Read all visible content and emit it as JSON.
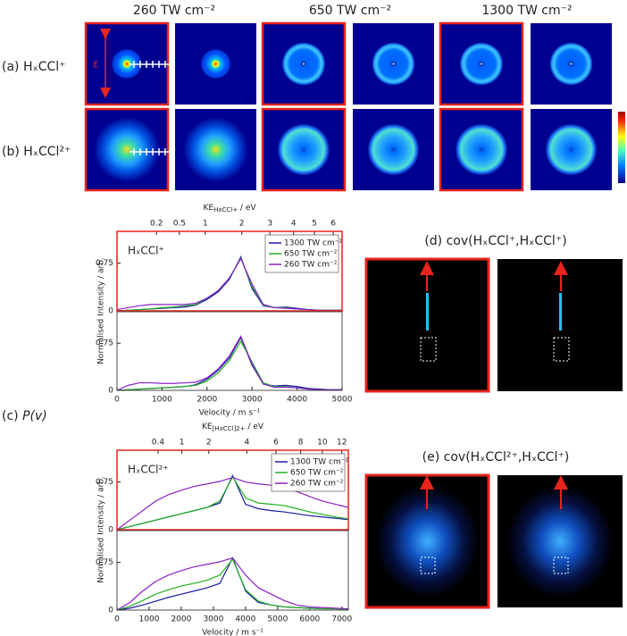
{
  "column_headers": [
    "260 TW cm⁻²",
    "650 TW cm⁻²",
    "1300 TW cm⁻²"
  ],
  "row_labels": [
    "(a) HₓCCl⁺",
    "(b) HₓCCl²⁺"
  ],
  "epsilon_label": "ε",
  "panel_c": {
    "letter": "(c)",
    "label": "P(v)"
  },
  "panel_d_title": "(d) cov(HₓCCl⁺,HₓCCl⁺)",
  "panel_e_title": "(e) cov(HₓCCl²⁺,HₓCCl⁺)",
  "chart_data": [
    {
      "type": "line",
      "title": "HₓCCl⁺",
      "x2label": {
        "text": "KE",
        "sub": "HxCCl+",
        "unit": " / eV"
      },
      "x2lim": [
        0,
        6.5
      ],
      "x2ticks": [
        0.2,
        0.5,
        1,
        2,
        3,
        4,
        5,
        6
      ],
      "x2scale": "sqrt",
      "ylabel": "Normalised Intensity / arb.",
      "xlim": [
        0,
        5000
      ],
      "ylim": [
        0,
        1.25
      ],
      "yticks": [
        0,
        0.75
      ],
      "frame_color": "#e8241c",
      "legend": "upper right",
      "x": [
        0,
        250,
        500,
        750,
        1000,
        1250,
        1500,
        1750,
        2000,
        2250,
        2500,
        2750,
        3000,
        3250,
        3500,
        3750,
        4000,
        4250,
        4500,
        4750,
        5000
      ],
      "series": [
        {
          "name": "1300 TW cm⁻²",
          "color": "#1a1aa6",
          "values": [
            0,
            0.01,
            0.02,
            0.03,
            0.04,
            0.05,
            0.06,
            0.09,
            0.18,
            0.3,
            0.5,
            0.85,
            0.35,
            0.08,
            0.05,
            0.06,
            0.04,
            0.02,
            0.01,
            0.01,
            0.01
          ]
        },
        {
          "name": "650 TW cm⁻²",
          "color": "#22b022",
          "values": [
            0,
            0.01,
            0.02,
            0.03,
            0.05,
            0.06,
            0.08,
            0.1,
            0.2,
            0.32,
            0.52,
            0.83,
            0.38,
            0.09,
            0.05,
            0.05,
            0.03,
            0.02,
            0.01,
            0.01,
            0.01
          ]
        },
        {
          "name": "260 TW cm⁻²",
          "color": "#8a20c8",
          "values": [
            0.02,
            0.05,
            0.08,
            0.1,
            0.1,
            0.1,
            0.1,
            0.12,
            0.2,
            0.32,
            0.52,
            0.82,
            0.42,
            0.1,
            0.05,
            0.04,
            0.03,
            0.02,
            0.01,
            0.01,
            0.01
          ]
        }
      ]
    },
    {
      "type": "line",
      "xlabel": "Velocity / m s⁻¹",
      "xlim": [
        0,
        5000
      ],
      "xticks": [
        0,
        1000,
        2000,
        3000,
        4000,
        5000
      ],
      "ylim": [
        0,
        1.25
      ],
      "yticks": [
        0,
        0.75
      ],
      "frame_color": "#222222",
      "x": [
        0,
        250,
        500,
        750,
        1000,
        1250,
        1500,
        1750,
        2000,
        2250,
        2500,
        2750,
        3000,
        3250,
        3500,
        3750,
        4000,
        4250,
        4500,
        4750,
        5000
      ],
      "series": [
        {
          "color": "#1a1aa6",
          "values": [
            0,
            0.01,
            0.02,
            0.03,
            0.04,
            0.05,
            0.06,
            0.09,
            0.18,
            0.32,
            0.52,
            0.84,
            0.4,
            0.1,
            0.07,
            0.08,
            0.06,
            0.03,
            0.02,
            0.01,
            0.01
          ]
        },
        {
          "color": "#22b022",
          "values": [
            0,
            0.01,
            0.02,
            0.03,
            0.04,
            0.05,
            0.06,
            0.08,
            0.15,
            0.28,
            0.48,
            0.78,
            0.45,
            0.12,
            0.06,
            0.06,
            0.04,
            0.02,
            0.01,
            0.01,
            0.01
          ]
        },
        {
          "color": "#8a20c8",
          "values": [
            0,
            0.08,
            0.12,
            0.12,
            0.11,
            0.11,
            0.12,
            0.13,
            0.2,
            0.34,
            0.55,
            0.86,
            0.42,
            0.1,
            0.05,
            0.05,
            0.04,
            0.02,
            0.01,
            0.01,
            0.01
          ]
        }
      ]
    },
    {
      "type": "line",
      "title": "HₓCCl²⁺",
      "x2label": {
        "text": "KE",
        "sub": "[HxCCl]2+",
        "unit": " / eV"
      },
      "x2lim": [
        0,
        12.7
      ],
      "x2ticks": [
        0.4,
        1,
        2,
        4,
        6,
        8,
        10,
        12
      ],
      "x2scale": "sqrt",
      "ylabel": "Normalised Intensity / arb.",
      "xlim": [
        0,
        7200
      ],
      "ylim": [
        0,
        1.25
      ],
      "yticks": [
        0,
        0.75
      ],
      "frame_color": "#e8241c",
      "legend": "upper right",
      "x": [
        0,
        400,
        800,
        1200,
        1600,
        2000,
        2400,
        2800,
        3200,
        3600,
        4000,
        4400,
        4800,
        5200,
        5600,
        6000,
        6400,
        6800,
        7200
      ],
      "series": [
        {
          "name": "1300 TW cm⁻²",
          "color": "#1a1aa6",
          "values": [
            0,
            0.05,
            0.1,
            0.15,
            0.2,
            0.25,
            0.3,
            0.35,
            0.42,
            0.85,
            0.4,
            0.33,
            0.3,
            0.28,
            0.25,
            0.22,
            0.2,
            0.18,
            0.16
          ]
        },
        {
          "name": "650 TW cm⁻²",
          "color": "#22b022",
          "values": [
            0,
            0.05,
            0.1,
            0.15,
            0.2,
            0.25,
            0.3,
            0.35,
            0.45,
            0.83,
            0.5,
            0.42,
            0.4,
            0.38,
            0.33,
            0.28,
            0.24,
            0.2,
            0.17
          ]
        },
        {
          "name": "260 TW cm⁻²",
          "color": "#8a20c8",
          "values": [
            0,
            0.15,
            0.3,
            0.45,
            0.55,
            0.62,
            0.68,
            0.72,
            0.76,
            0.82,
            0.75,
            0.72,
            0.7,
            0.65,
            0.6,
            0.52,
            0.45,
            0.4,
            0.35
          ]
        }
      ]
    },
    {
      "type": "line",
      "xlabel": "Velocity / m s⁻¹",
      "xlim": [
        0,
        7200
      ],
      "xticks": [
        0,
        1000,
        2000,
        3000,
        4000,
        5000,
        6000,
        7000
      ],
      "ylim": [
        0,
        1.25
      ],
      "yticks": [
        0,
        0.75
      ],
      "frame_color": "#222222",
      "x": [
        0,
        400,
        800,
        1200,
        1600,
        2000,
        2400,
        2800,
        3200,
        3600,
        4000,
        4400,
        4800,
        5200,
        5600,
        6000,
        6400,
        6800,
        7200
      ],
      "series": [
        {
          "color": "#1a1aa6",
          "values": [
            0,
            0.03,
            0.08,
            0.14,
            0.2,
            0.25,
            0.3,
            0.35,
            0.42,
            0.82,
            0.3,
            0.12,
            0.08,
            0.05,
            0.04,
            0.03,
            0.02,
            0.02,
            0.01
          ]
        },
        {
          "color": "#22b022",
          "values": [
            0,
            0.06,
            0.15,
            0.25,
            0.32,
            0.38,
            0.42,
            0.47,
            0.55,
            0.8,
            0.32,
            0.14,
            0.08,
            0.05,
            0.04,
            0.03,
            0.02,
            0.02,
            0.01
          ]
        },
        {
          "color": "#8a20c8",
          "values": [
            0,
            0.12,
            0.3,
            0.45,
            0.55,
            0.62,
            0.68,
            0.72,
            0.76,
            0.82,
            0.55,
            0.35,
            0.25,
            0.15,
            0.08,
            0.05,
            0.04,
            0.03,
            0.02
          ]
        }
      ]
    }
  ]
}
